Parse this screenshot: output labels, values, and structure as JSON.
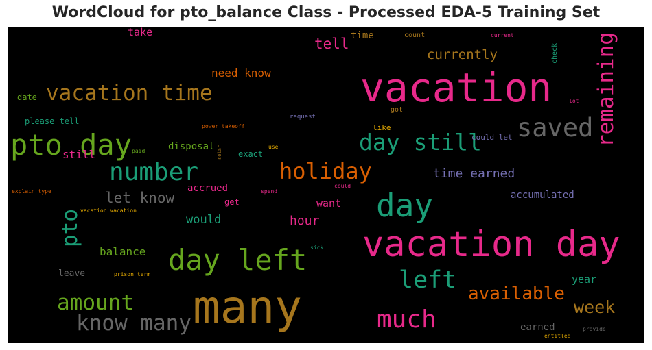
{
  "chart_data": {
    "type": "wordcloud",
    "title": "WordCloud for pto_balance Class - Processed EDA-5 Training Set",
    "background": "#000000",
    "colors": {
      "magenta": "#e7298a",
      "teal": "#1b9e77",
      "orange": "#d95f02",
      "green": "#66a61e",
      "gold": "#a6761d",
      "gray": "#666666",
      "purple": "#7570b3",
      "yellow": "#e6ab02"
    },
    "words": [
      {
        "text": "many",
        "color": "gold"
      },
      {
        "text": "vacation",
        "color": "magenta"
      },
      {
        "text": "vacation day",
        "color": "magenta"
      },
      {
        "text": "day",
        "color": "teal"
      },
      {
        "text": "day left",
        "color": "green"
      },
      {
        "text": "pto day",
        "color": "green"
      },
      {
        "text": "vacation time",
        "color": "gold"
      },
      {
        "text": "number",
        "color": "teal"
      },
      {
        "text": "saved",
        "color": "gray"
      },
      {
        "text": "remaining",
        "color": "magenta",
        "rotated": true
      },
      {
        "text": "day still",
        "color": "teal"
      },
      {
        "text": "holiday",
        "color": "orange"
      },
      {
        "text": "much",
        "color": "magenta"
      },
      {
        "text": "left",
        "color": "teal"
      },
      {
        "text": "know many",
        "color": "gray"
      },
      {
        "text": "amount",
        "color": "green"
      },
      {
        "text": "pto",
        "color": "teal",
        "rotated": true
      },
      {
        "text": "available",
        "color": "orange"
      },
      {
        "text": "week",
        "color": "gold"
      },
      {
        "text": "currently",
        "color": "gold"
      },
      {
        "text": "tell",
        "color": "magenta"
      },
      {
        "text": "let know",
        "color": "gray"
      },
      {
        "text": "time earned",
        "color": "purple"
      },
      {
        "text": "need know",
        "color": "orange"
      },
      {
        "text": "balance",
        "color": "green"
      },
      {
        "text": "hour",
        "color": "magenta"
      },
      {
        "text": "would",
        "color": "teal"
      },
      {
        "text": "still",
        "color": "magenta"
      },
      {
        "text": "want",
        "color": "magenta"
      },
      {
        "text": "disposal",
        "color": "green"
      },
      {
        "text": "accrued",
        "color": "magenta"
      },
      {
        "text": "accumulated",
        "color": "purple"
      },
      {
        "text": "year",
        "color": "teal"
      },
      {
        "text": "take",
        "color": "magenta"
      },
      {
        "text": "time",
        "color": "gold"
      },
      {
        "text": "earned",
        "color": "gray"
      },
      {
        "text": "leave",
        "color": "gray"
      },
      {
        "text": "exact",
        "color": "teal"
      },
      {
        "text": "get",
        "color": "magenta"
      },
      {
        "text": "could let",
        "color": "purple"
      },
      {
        "text": "please tell",
        "color": "teal"
      },
      {
        "text": "date",
        "color": "green"
      },
      {
        "text": "like",
        "color": "yellow"
      },
      {
        "text": "count",
        "color": "gold"
      },
      {
        "text": "check",
        "color": "teal",
        "rotated": true
      },
      {
        "text": "got",
        "color": "gold"
      },
      {
        "text": "current",
        "color": "magenta"
      },
      {
        "text": "lot",
        "color": "magenta"
      },
      {
        "text": "request",
        "color": "purple"
      },
      {
        "text": "power takeoff",
        "color": "orange"
      },
      {
        "text": "paid",
        "color": "green"
      },
      {
        "text": "use",
        "color": "yellow"
      },
      {
        "text": "solar",
        "color": "gold",
        "rotated": true
      },
      {
        "text": "spend",
        "color": "magenta"
      },
      {
        "text": "could",
        "color": "magenta"
      },
      {
        "text": "explain type",
        "color": "orange"
      },
      {
        "text": "vacation vacation",
        "color": "yellow"
      },
      {
        "text": "sick",
        "color": "teal"
      },
      {
        "text": "prison term",
        "color": "yellow"
      },
      {
        "text": "entitled",
        "color": "yellow"
      },
      {
        "text": "provide",
        "color": "gray"
      }
    ]
  }
}
